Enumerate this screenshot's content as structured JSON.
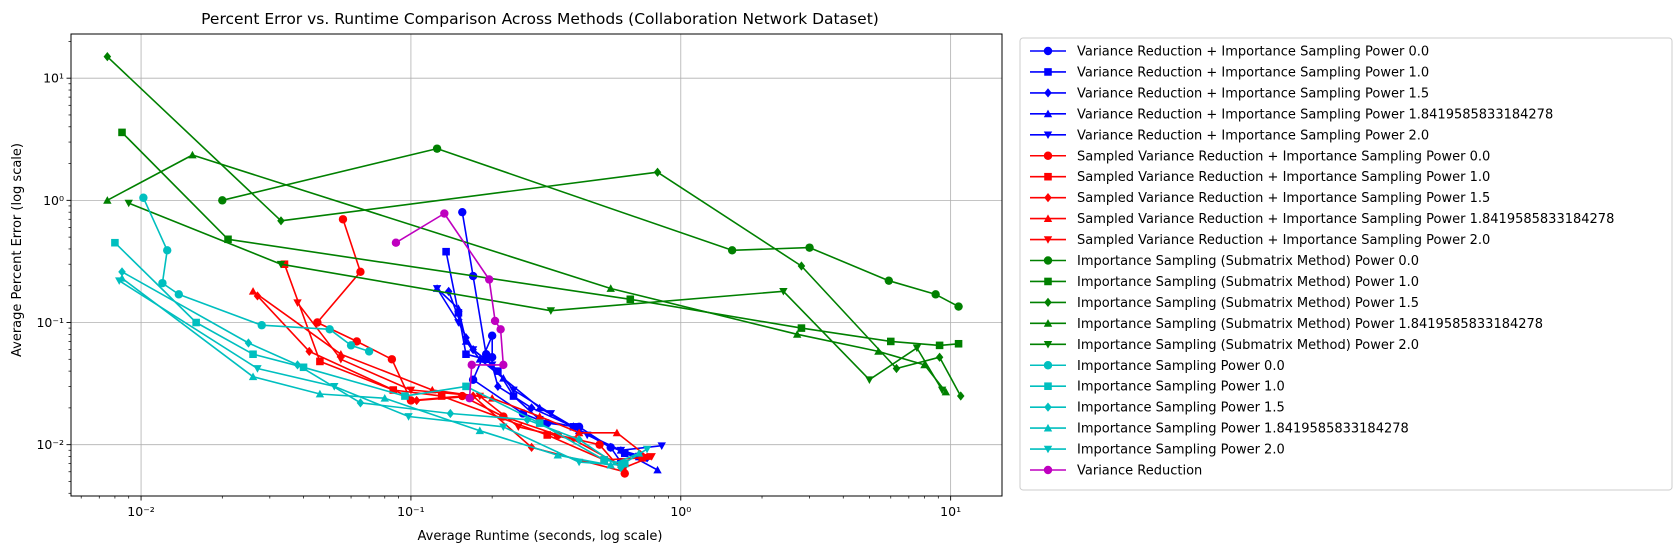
{
  "chart_data": {
    "type": "line",
    "title": "Percent Error vs. Runtime Comparison Across Methods (Collaboration Network Dataset)",
    "xlabel": "Average Runtime (seconds, log scale)",
    "ylabel": "Average Percent Error (log scale)",
    "x_scale": "log",
    "y_scale": "log",
    "xlim": [
      0.0055,
      15.5
    ],
    "ylim": [
      0.0038,
      23
    ],
    "x_ticks": [
      {
        "value": 0.01,
        "label": "10⁻²"
      },
      {
        "value": 0.1,
        "label": "10⁻¹"
      },
      {
        "value": 1,
        "label": "10⁰"
      },
      {
        "value": 10,
        "label": "10¹"
      }
    ],
    "y_ticks": [
      {
        "value": 0.01,
        "label": "10⁻²"
      },
      {
        "value": 0.1,
        "label": "10⁻¹"
      },
      {
        "value": 1,
        "label": "10⁰"
      },
      {
        "value": 10,
        "label": "10¹"
      }
    ],
    "grid": true,
    "legend_position": "outside-right",
    "series": [
      {
        "name": "Variance Reduction + Importance Sampling Power 0.0",
        "color": "#0000ff",
        "marker": "circle",
        "points": [
          [
            0.155,
            0.8
          ],
          [
            0.17,
            0.24
          ],
          [
            0.19,
            0.055
          ],
          [
            0.2,
            0.052
          ],
          [
            0.2,
            0.078
          ],
          [
            0.17,
            0.034
          ],
          [
            0.26,
            0.018
          ],
          [
            0.32,
            0.015
          ],
          [
            0.42,
            0.014
          ],
          [
            0.55,
            0.0095
          ],
          [
            0.6,
            0.0072
          ]
        ]
      },
      {
        "name": "Variance Reduction + Importance Sampling Power 1.0",
        "color": "#0000ff",
        "marker": "square",
        "points": [
          [
            0.135,
            0.38
          ],
          [
            0.15,
            0.12
          ],
          [
            0.16,
            0.055
          ],
          [
            0.19,
            0.05
          ],
          [
            0.21,
            0.04
          ],
          [
            0.24,
            0.025
          ],
          [
            0.3,
            0.016
          ],
          [
            0.4,
            0.014
          ],
          [
            0.62,
            0.0085
          ],
          [
            0.7,
            0.008
          ]
        ]
      },
      {
        "name": "Variance Reduction + Importance Sampling Power 1.5",
        "color": "#0000ff",
        "marker": "diamond",
        "points": [
          [
            0.138,
            0.18
          ],
          [
            0.16,
            0.075
          ],
          [
            0.17,
            0.06
          ],
          [
            0.2,
            0.045
          ],
          [
            0.21,
            0.03
          ],
          [
            0.28,
            0.02
          ],
          [
            0.4,
            0.014
          ],
          [
            0.55,
            0.0095
          ],
          [
            0.75,
            0.0078
          ]
        ]
      },
      {
        "name": "Variance Reduction + Importance Sampling Power 1.8419585833184278",
        "color": "#0000ff",
        "marker": "triangle-up",
        "points": [
          [
            0.125,
            0.19
          ],
          [
            0.15,
            0.13
          ],
          [
            0.16,
            0.07
          ],
          [
            0.18,
            0.05
          ],
          [
            0.22,
            0.035
          ],
          [
            0.3,
            0.02
          ],
          [
            0.42,
            0.013
          ],
          [
            0.6,
            0.009
          ],
          [
            0.82,
            0.0062
          ]
        ]
      },
      {
        "name": "Variance Reduction + Importance Sampling Power 2.0",
        "color": "#0000ff",
        "marker": "triangle-down",
        "points": [
          [
            0.125,
            0.19
          ],
          [
            0.15,
            0.1
          ],
          [
            0.17,
            0.06
          ],
          [
            0.2,
            0.045
          ],
          [
            0.24,
            0.028
          ],
          [
            0.33,
            0.018
          ],
          [
            0.45,
            0.012
          ],
          [
            0.6,
            0.009
          ],
          [
            0.85,
            0.0098
          ]
        ]
      },
      {
        "name": "Sampled Variance Reduction + Importance Sampling Power 0.0",
        "color": "#ff0000",
        "marker": "circle",
        "points": [
          [
            0.056,
            0.7
          ],
          [
            0.065,
            0.26
          ],
          [
            0.045,
            0.1
          ],
          [
            0.063,
            0.07
          ],
          [
            0.085,
            0.05
          ],
          [
            0.1,
            0.023
          ],
          [
            0.155,
            0.025
          ],
          [
            0.22,
            0.017
          ],
          [
            0.35,
            0.012
          ],
          [
            0.5,
            0.01
          ],
          [
            0.62,
            0.0058
          ]
        ]
      },
      {
        "name": "Sampled Variance Reduction + Importance Sampling Power 1.0",
        "color": "#ff0000",
        "marker": "square",
        "points": [
          [
            0.034,
            0.3
          ],
          [
            0.046,
            0.048
          ],
          [
            0.086,
            0.028
          ],
          [
            0.13,
            0.025
          ],
          [
            0.32,
            0.012
          ],
          [
            0.52,
            0.0075
          ],
          [
            0.72,
            0.0078
          ]
        ]
      },
      {
        "name": "Sampled Variance Reduction + Importance Sampling Power 1.5",
        "color": "#ff0000",
        "marker": "diamond",
        "points": [
          [
            0.027,
            0.165
          ],
          [
            0.042,
            0.058
          ],
          [
            0.105,
            0.023
          ],
          [
            0.17,
            0.025
          ],
          [
            0.28,
            0.0095
          ],
          [
            0.62,
            0.006
          ]
        ]
      },
      {
        "name": "Sampled Variance Reduction + Importance Sampling Power 1.8419585833184278",
        "color": "#ff0000",
        "marker": "triangle-up",
        "points": [
          [
            0.026,
            0.18
          ],
          [
            0.055,
            0.055
          ],
          [
            0.12,
            0.028
          ],
          [
            0.2,
            0.024
          ],
          [
            0.3,
            0.017
          ],
          [
            0.42,
            0.0125
          ],
          [
            0.58,
            0.0125
          ],
          [
            0.75,
            0.008
          ]
        ]
      },
      {
        "name": "Sampled Variance Reduction + Importance Sampling Power 2.0",
        "color": "#ff0000",
        "marker": "triangle-down",
        "points": [
          [
            0.038,
            0.145
          ],
          [
            0.055,
            0.05
          ],
          [
            0.1,
            0.028
          ],
          [
            0.18,
            0.025
          ],
          [
            0.25,
            0.014
          ],
          [
            0.4,
            0.011
          ],
          [
            0.62,
            0.0065
          ],
          [
            0.78,
            0.008
          ]
        ]
      },
      {
        "name": "Importance Sampling (Submatrix Method) Power 0.0",
        "color": "#008000",
        "marker": "circle",
        "points": [
          [
            0.02,
            1.0
          ],
          [
            0.125,
            2.65
          ],
          [
            1.55,
            0.39
          ],
          [
            3.0,
            0.41
          ],
          [
            5.9,
            0.22
          ],
          [
            8.8,
            0.17
          ],
          [
            10.7,
            0.135
          ]
        ]
      },
      {
        "name": "Importance Sampling (Submatrix Method) Power 1.0",
        "color": "#008000",
        "marker": "square",
        "points": [
          [
            0.0085,
            3.6
          ],
          [
            0.021,
            0.48
          ],
          [
            0.65,
            0.155
          ],
          [
            2.8,
            0.09
          ],
          [
            6.0,
            0.07
          ],
          [
            9.1,
            0.065
          ],
          [
            10.7,
            0.067
          ]
        ]
      },
      {
        "name": "Importance Sampling (Submatrix Method) Power 1.5",
        "color": "#008000",
        "marker": "diamond",
        "points": [
          [
            0.0075,
            15.0
          ],
          [
            0.033,
            0.68
          ],
          [
            0.82,
            1.7
          ],
          [
            2.8,
            0.29
          ],
          [
            6.3,
            0.042
          ],
          [
            9.1,
            0.052
          ],
          [
            10.9,
            0.025
          ]
        ]
      },
      {
        "name": "Importance Sampling (Submatrix Method) Power 1.8419585833184278",
        "color": "#008000",
        "marker": "triangle-up",
        "points": [
          [
            0.0075,
            1.0
          ],
          [
            0.0155,
            2.35
          ],
          [
            0.55,
            0.19
          ],
          [
            2.7,
            0.08
          ],
          [
            5.4,
            0.058
          ],
          [
            8.0,
            0.045
          ],
          [
            9.6,
            0.027
          ]
        ]
      },
      {
        "name": "Importance Sampling (Submatrix Method) Power 2.0",
        "color": "#008000",
        "marker": "triangle-down",
        "points": [
          [
            0.009,
            0.95
          ],
          [
            0.033,
            0.3
          ],
          [
            0.33,
            0.125
          ],
          [
            2.4,
            0.18
          ],
          [
            5.0,
            0.034
          ],
          [
            7.5,
            0.062
          ],
          [
            9.3,
            0.028
          ]
        ]
      },
      {
        "name": "Importance Sampling Power 0.0",
        "color": "#00bfbf",
        "marker": "circle",
        "points": [
          [
            0.0102,
            1.05
          ],
          [
            0.0125,
            0.39
          ],
          [
            0.012,
            0.21
          ],
          [
            0.0138,
            0.17
          ],
          [
            0.028,
            0.095
          ],
          [
            0.05,
            0.088
          ],
          [
            0.06,
            0.065
          ],
          [
            0.07,
            0.058
          ]
        ]
      },
      {
        "name": "Importance Sampling Power 1.0",
        "color": "#00bfbf",
        "marker": "square",
        "points": [
          [
            0.008,
            0.45
          ],
          [
            0.016,
            0.1
          ],
          [
            0.026,
            0.055
          ],
          [
            0.04,
            0.043
          ],
          [
            0.095,
            0.025
          ],
          [
            0.16,
            0.03
          ],
          [
            0.3,
            0.015
          ],
          [
            0.52,
            0.0075
          ],
          [
            0.62,
            0.007
          ]
        ]
      },
      {
        "name": "Importance Sampling Power 1.5",
        "color": "#00bfbf",
        "marker": "diamond",
        "points": [
          [
            0.0085,
            0.26
          ],
          [
            0.025,
            0.068
          ],
          [
            0.038,
            0.045
          ],
          [
            0.065,
            0.022
          ],
          [
            0.14,
            0.018
          ],
          [
            0.27,
            0.016
          ],
          [
            0.42,
            0.011
          ],
          [
            0.6,
            0.0065
          ]
        ]
      },
      {
        "name": "Importance Sampling Power 1.8419585833184278",
        "color": "#00bfbf",
        "marker": "triangle-up",
        "points": [
          [
            0.0085,
            0.23
          ],
          [
            0.026,
            0.036
          ],
          [
            0.046,
            0.026
          ],
          [
            0.08,
            0.024
          ],
          [
            0.18,
            0.013
          ],
          [
            0.35,
            0.0082
          ],
          [
            0.55,
            0.0068
          ],
          [
            0.7,
            0.0085
          ]
        ]
      },
      {
        "name": "Importance Sampling Power 2.0",
        "color": "#00bfbf",
        "marker": "triangle-down",
        "points": [
          [
            0.0083,
            0.22
          ],
          [
            0.027,
            0.042
          ],
          [
            0.052,
            0.03
          ],
          [
            0.098,
            0.017
          ],
          [
            0.22,
            0.014
          ],
          [
            0.42,
            0.0072
          ],
          [
            0.6,
            0.0068
          ],
          [
            0.75,
            0.0092
          ]
        ]
      },
      {
        "name": "Variance Reduction",
        "color": "#bf00bf",
        "marker": "circle",
        "points": [
          [
            0.088,
            0.45
          ],
          [
            0.133,
            0.78
          ],
          [
            0.195,
            0.225
          ],
          [
            0.205,
            0.103
          ],
          [
            0.215,
            0.088
          ],
          [
            0.22,
            0.045
          ],
          [
            0.168,
            0.045
          ],
          [
            0.165,
            0.024
          ]
        ]
      }
    ]
  }
}
